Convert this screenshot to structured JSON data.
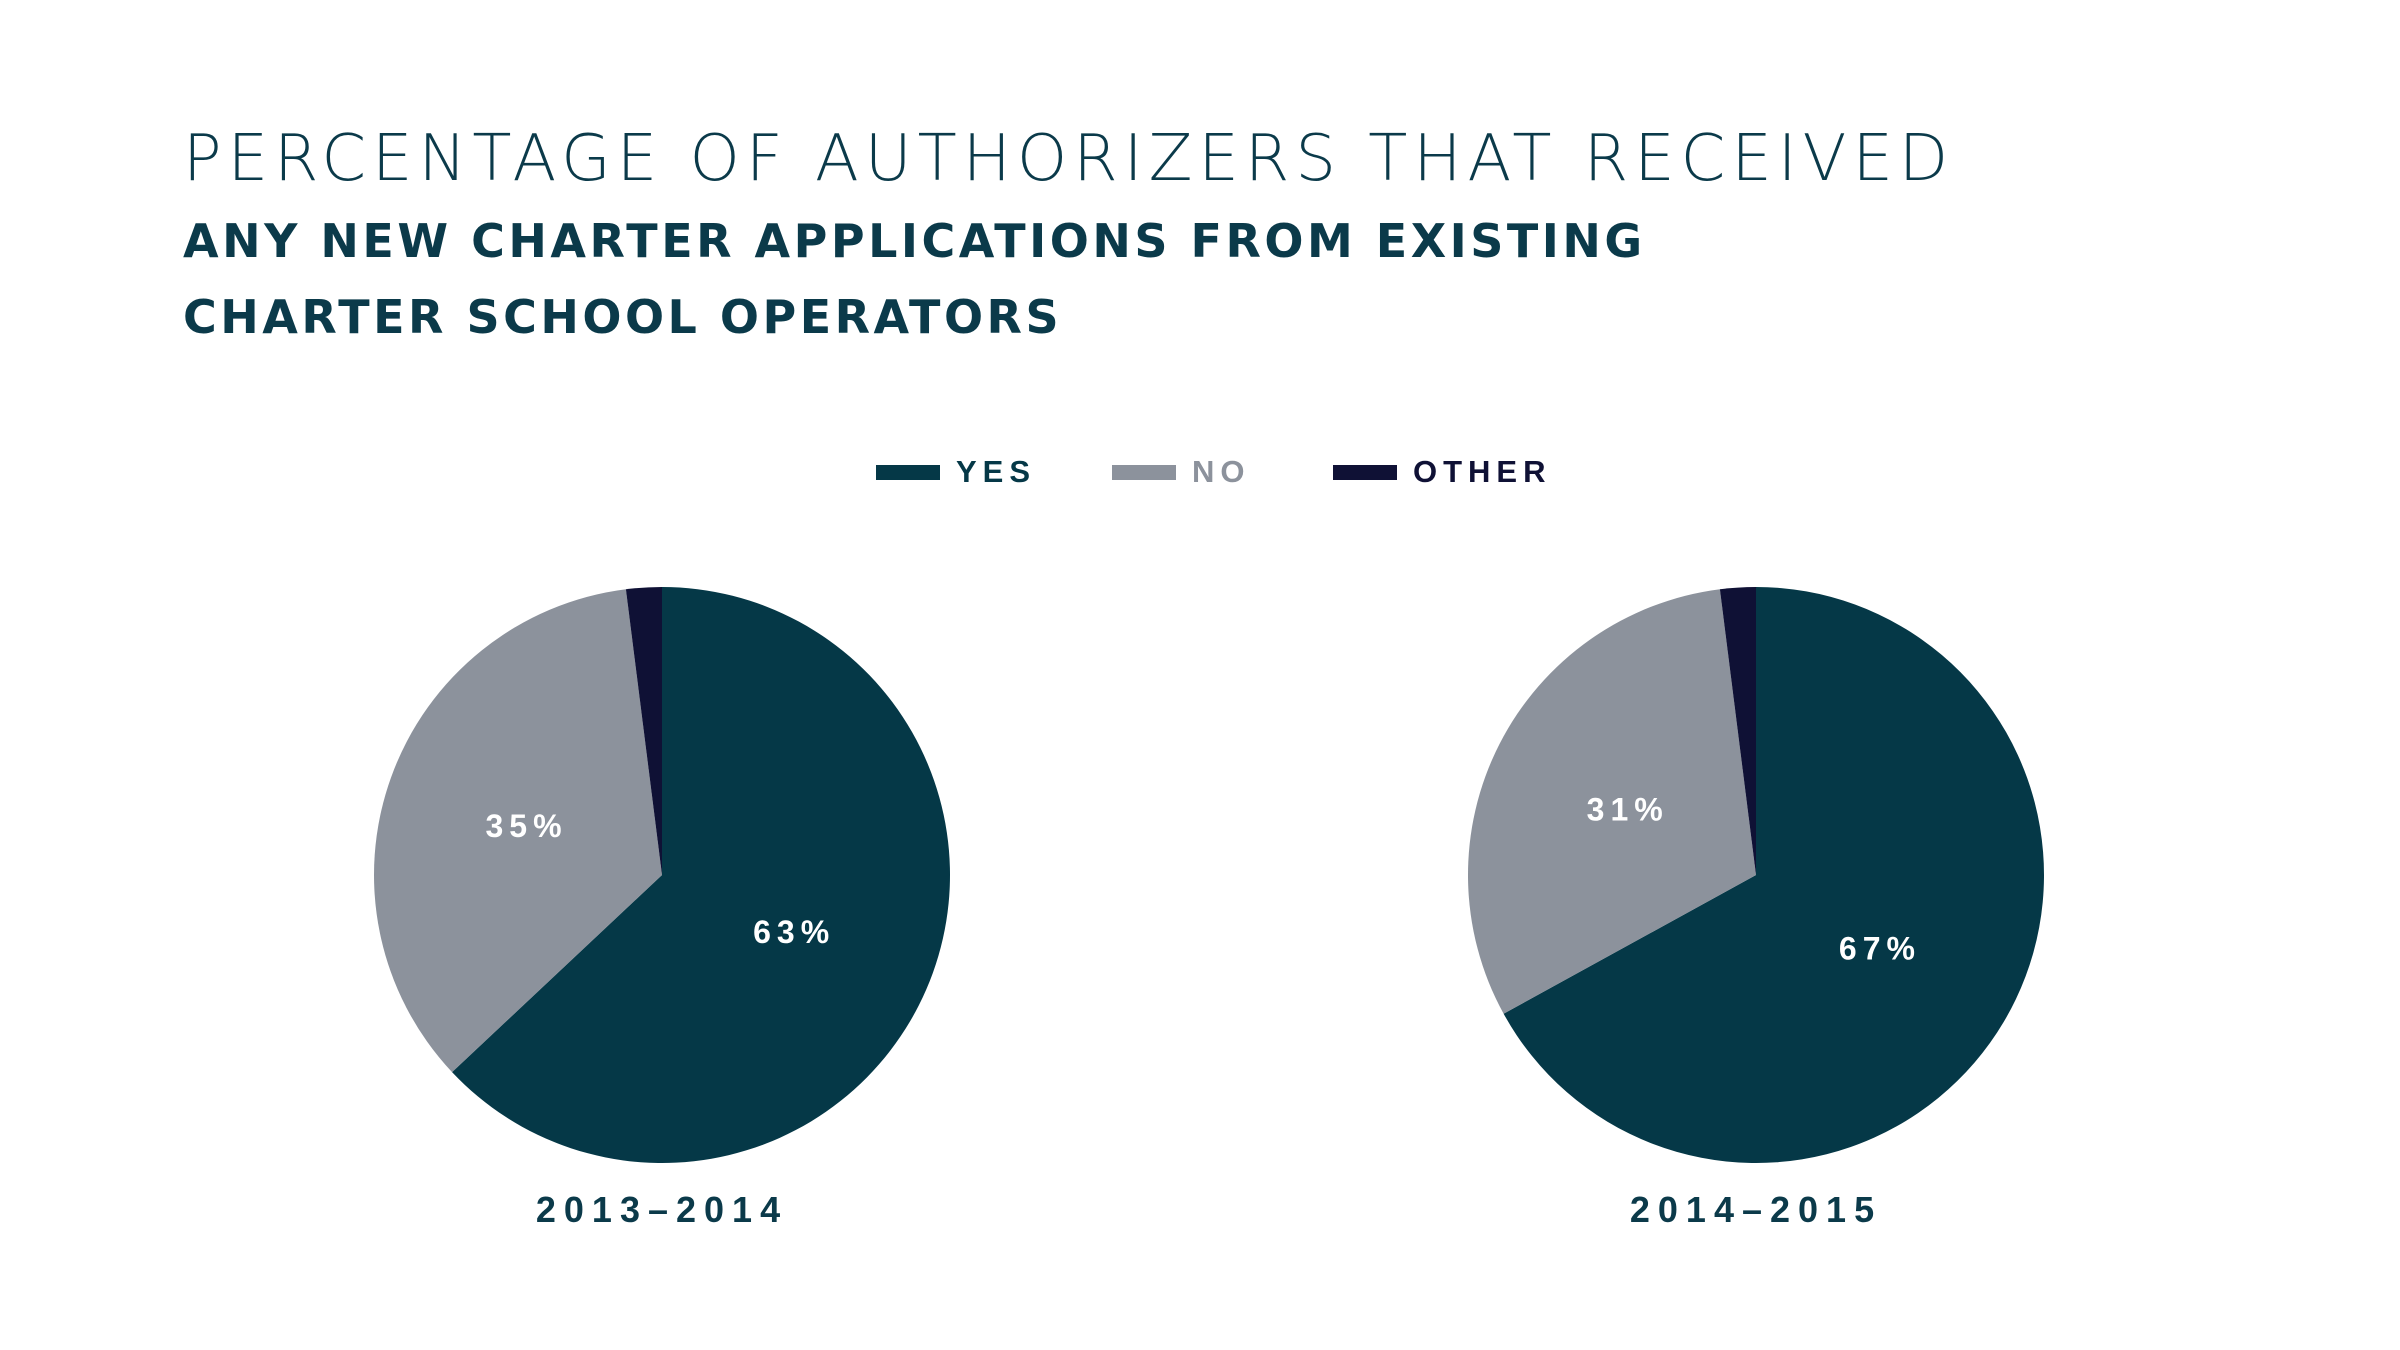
{
  "title": {
    "line1": "PERCENTAGE OF AUTHORIZERS THAT RECEIVED",
    "line2": "ANY NEW CHARTER APPLICATIONS FROM EXISTING",
    "line3": "CHARTER SCHOOL OPERATORS"
  },
  "legend": [
    {
      "label": "YES",
      "color": "#053847"
    },
    {
      "label": "NO",
      "color": "#8c929c"
    },
    {
      "label": "OTHER",
      "color": "#0f1135"
    }
  ],
  "chart_data": [
    {
      "type": "pie",
      "title": "2013–2014",
      "slices": [
        {
          "name": "YES",
          "value": 63,
          "label": "63%",
          "color": "#053847"
        },
        {
          "name": "NO",
          "value": 35,
          "label": "35%",
          "color": "#8c929c"
        },
        {
          "name": "OTHER",
          "value": 2,
          "label": "",
          "color": "#0f1135"
        }
      ]
    },
    {
      "type": "pie",
      "title": "2014–2015",
      "slices": [
        {
          "name": "YES",
          "value": 67,
          "label": "67%",
          "color": "#053847"
        },
        {
          "name": "NO",
          "value": 31,
          "label": "31%",
          "color": "#8c929c"
        },
        {
          "name": "OTHER",
          "value": 2,
          "label": "",
          "color": "#0f1135"
        }
      ]
    }
  ]
}
